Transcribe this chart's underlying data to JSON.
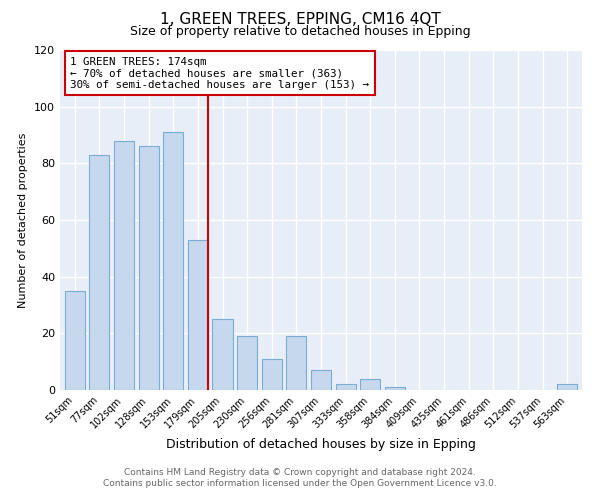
{
  "title": "1, GREEN TREES, EPPING, CM16 4QT",
  "subtitle": "Size of property relative to detached houses in Epping",
  "xlabel": "Distribution of detached houses by size in Epping",
  "ylabel": "Number of detached properties",
  "bar_color": "#c5d8ee",
  "bar_edge_color": "#7aadd4",
  "plot_bg_color": "#e8eef8",
  "fig_bg_color": "#ffffff",
  "grid_color": "#ffffff",
  "categories": [
    "51sqm",
    "77sqm",
    "102sqm",
    "128sqm",
    "153sqm",
    "179sqm",
    "205sqm",
    "230sqm",
    "256sqm",
    "281sqm",
    "307sqm",
    "333sqm",
    "358sqm",
    "384sqm",
    "409sqm",
    "435sqm",
    "461sqm",
    "486sqm",
    "512sqm",
    "537sqm",
    "563sqm"
  ],
  "values": [
    35,
    83,
    88,
    86,
    91,
    53,
    25,
    19,
    11,
    19,
    7,
    2,
    4,
    1,
    0,
    0,
    0,
    0,
    0,
    0,
    2
  ],
  "ylim": [
    0,
    120
  ],
  "yticks": [
    0,
    20,
    40,
    60,
    80,
    100,
    120
  ],
  "property_line_index": 5,
  "property_line_color": "#cc0000",
  "annotation_line1": "1 GREEN TREES: 174sqm",
  "annotation_line2": "← 70% of detached houses are smaller (363)",
  "annotation_line3": "30% of semi-detached houses are larger (153) →",
  "annotation_box_color": "#ffffff",
  "annotation_box_edge": "#cc0000",
  "footer_line1": "Contains HM Land Registry data © Crown copyright and database right 2024.",
  "footer_line2": "Contains public sector information licensed under the Open Government Licence v3.0.",
  "title_fontsize": 11,
  "subtitle_fontsize": 9,
  "axis_label_fontsize": 9,
  "tick_fontsize": 7,
  "footer_fontsize": 6.5
}
